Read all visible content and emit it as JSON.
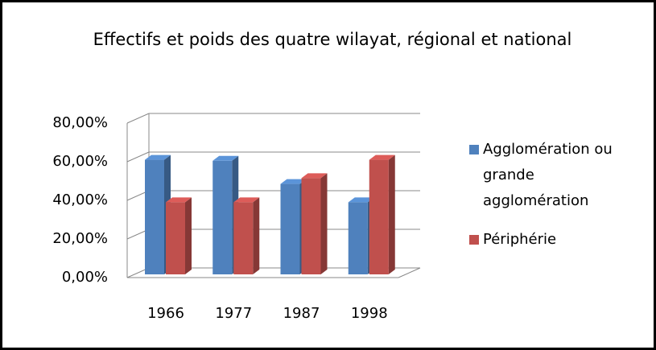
{
  "chart_data": {
    "type": "bar3d",
    "title": "Effectifs et poids des quatre wilayat, régional  et national",
    "categories": [
      "1966",
      "1977",
      "1987",
      "1998"
    ],
    "series": [
      {
        "name": "Agglomération ou grande agglomération",
        "color": "#4f81bd",
        "values": [
          61,
          60.5,
          48.5,
          39
        ]
      },
      {
        "name": "Périphérie",
        "color": "#c0504d",
        "values": [
          39,
          39,
          51.5,
          61
        ]
      }
    ],
    "ylim": [
      0,
      80
    ],
    "yticks": [
      {
        "value": 0,
        "label": "0,00%"
      },
      {
        "value": 20,
        "label": "20,00%"
      },
      {
        "value": 40,
        "label": "40,00%"
      },
      {
        "value": 60,
        "label": "60,00%"
      },
      {
        "value": 80,
        "label": "80,00%"
      }
    ],
    "grid": true,
    "legend": "right"
  }
}
